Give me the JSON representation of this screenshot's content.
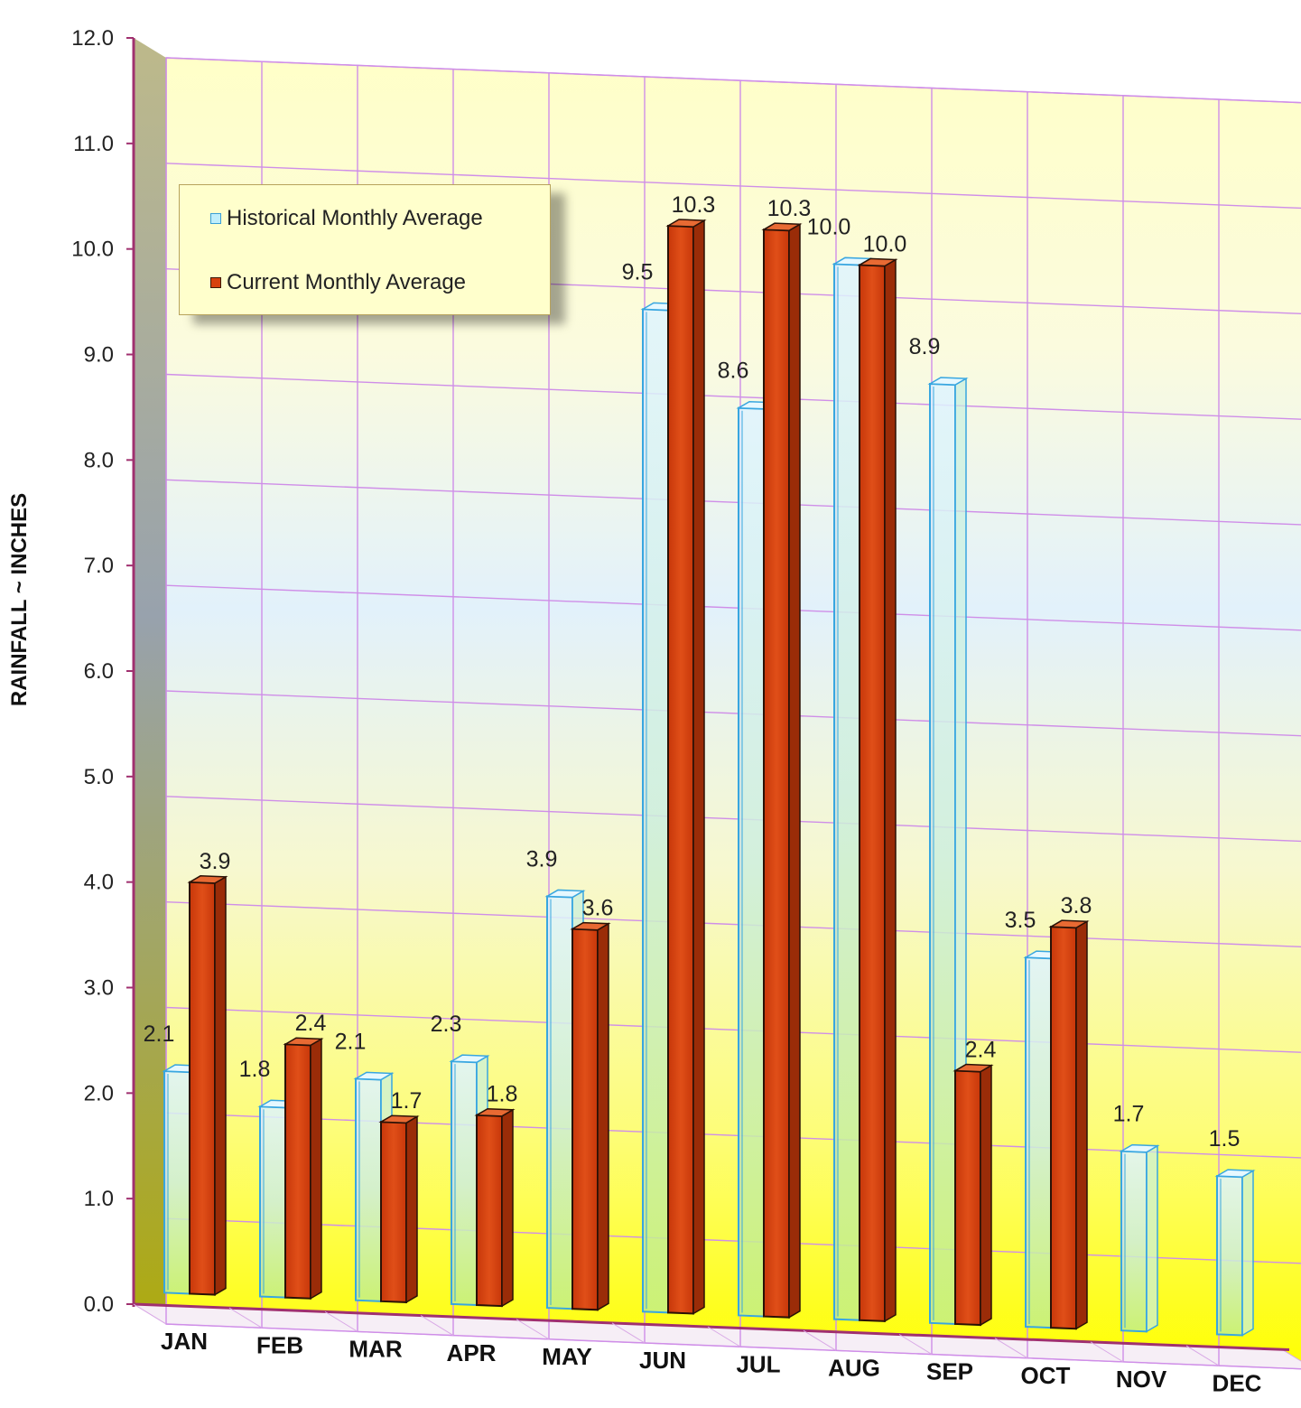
{
  "chart_data": {
    "type": "bar",
    "ylabel": "RAINFALL ~ INCHES",
    "ylim": [
      0,
      12
    ],
    "yticks": [
      "0.0",
      "1.0",
      "2.0",
      "3.0",
      "4.0",
      "5.0",
      "6.0",
      "7.0",
      "8.0",
      "9.0",
      "10.0",
      "11.0",
      "12.0"
    ],
    "categories": [
      "JAN",
      "FEB",
      "MAR",
      "APR",
      "MAY",
      "JUN",
      "JUL",
      "AUG",
      "SEP",
      "OCT",
      "NOV",
      "DEC"
    ],
    "series": [
      {
        "name": "Historical Monthly Average",
        "color": "#bfeefb",
        "values": [
          2.1,
          1.8,
          2.1,
          2.3,
          3.9,
          9.5,
          8.6,
          10.0,
          8.9,
          3.5,
          1.7,
          1.5
        ],
        "labels": [
          "2.1",
          "1.8",
          "2.1",
          "2.3",
          "3.9",
          "9.5",
          "8.6",
          "10.0",
          "8.9",
          "3.5",
          "1.7",
          "1.5"
        ]
      },
      {
        "name": "Current Monthly Average",
        "color": "#d6410e",
        "values": [
          3.9,
          2.4,
          1.7,
          1.8,
          3.6,
          10.3,
          10.3,
          10.0,
          2.4,
          3.8,
          null,
          null
        ],
        "labels": [
          "3.9",
          "2.4",
          "1.7",
          "1.8",
          "3.6",
          "10.3",
          "10.3",
          "10.0",
          "2.4",
          "3.8",
          null,
          null
        ]
      }
    ],
    "grid": true,
    "legend": "top-left"
  }
}
